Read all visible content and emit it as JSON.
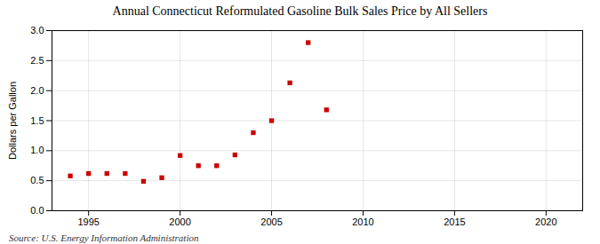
{
  "chart_data": {
    "type": "scatter",
    "title": "Annual Connecticut Reformulated Gasoline Bulk Sales Price by All Sellers",
    "ylabel": "Dollars per Gallon",
    "source": "Source: U.S. Energy Information Administration",
    "x": [
      1994,
      1995,
      1996,
      1997,
      1998,
      1999,
      2000,
      2001,
      2002,
      2003,
      2004,
      2005,
      2006,
      2007,
      2008
    ],
    "values": [
      0.58,
      0.62,
      0.62,
      0.62,
      0.49,
      0.55,
      0.92,
      0.75,
      0.75,
      0.93,
      1.3,
      1.5,
      2.13,
      2.8,
      1.68
    ],
    "color": "#cc0000",
    "marker": "square",
    "xlim": [
      1993,
      2022
    ],
    "ylim": [
      0.0,
      3.0
    ],
    "xticks": [
      1995,
      2000,
      2005,
      2010,
      2015,
      2020
    ],
    "yticks": [
      {
        "value": 0.0,
        "label": "0.0"
      },
      0.5,
      {
        "value": 1.0,
        "label": "1.0"
      },
      1.5,
      {
        "value": 2.0,
        "label": "2.0"
      },
      2.5,
      {
        "value": 3.0,
        "label": "3.0"
      }
    ],
    "grid": true
  }
}
